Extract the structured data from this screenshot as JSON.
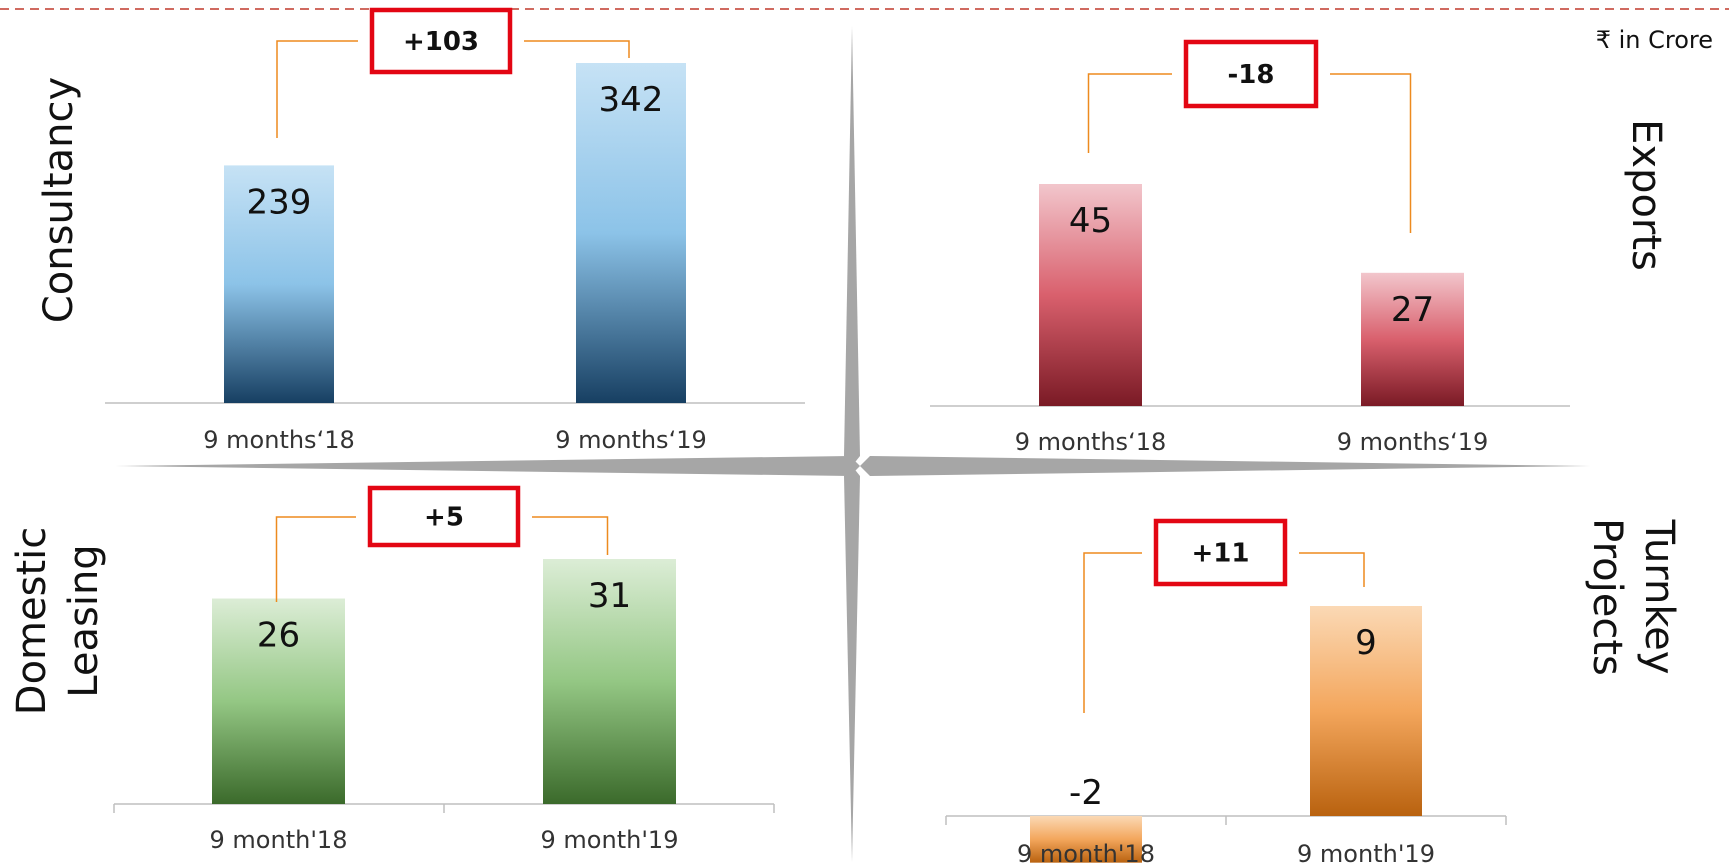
{
  "unit_note": "₹ in Crore",
  "colors": {
    "dashed_border": "#c0392b",
    "bracket": "#ed8a1f",
    "delta_box": "#e30613",
    "divider": "#a6a6a6",
    "axis": "#bfbfbf"
  },
  "chart_data": [
    {
      "type": "bar",
      "title": "Consultancy",
      "categories": [
        "9 months‘18",
        "9 months‘19"
      ],
      "values": [
        239,
        342
      ],
      "change": "+103",
      "ylim": [
        0,
        342
      ],
      "gradient": [
        "#c6e2f5",
        "#8cc3e8",
        "#173f62"
      ]
    },
    {
      "type": "bar",
      "title": "Exports",
      "categories": [
        "9 months‘18",
        "9 months‘19"
      ],
      "values": [
        45,
        27
      ],
      "change": "-18",
      "ylim": [
        0,
        45
      ],
      "gradient": [
        "#f2c6cc",
        "#d9606d",
        "#7a1a25"
      ]
    },
    {
      "type": "bar",
      "title": "Domestic Leasing",
      "title_lines": [
        "Domestic",
        "Leasing"
      ],
      "categories": [
        "9 month'18",
        "9 month'19"
      ],
      "values": [
        26,
        31
      ],
      "change": "+5",
      "ylim": [
        0,
        31
      ],
      "gradient": [
        "#dcedd6",
        "#94c784",
        "#3b6a2b"
      ]
    },
    {
      "type": "bar",
      "title": "Turnkey Projects",
      "title_lines": [
        "Turnkey",
        "Projects"
      ],
      "categories": [
        "9 month'18",
        "9 month'19"
      ],
      "values": [
        -2,
        9
      ],
      "change": "+11",
      "ylim": [
        -2,
        9
      ],
      "gradient": [
        "#fbd9b5",
        "#f3a65c",
        "#b9620f"
      ]
    }
  ]
}
